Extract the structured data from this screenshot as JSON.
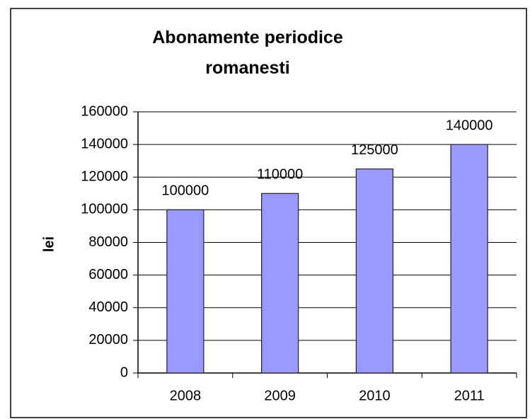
{
  "chart_data": {
    "type": "bar",
    "title": "Abonamente periodice romanesti",
    "y_label": "lei",
    "categories": [
      "2008",
      "2009",
      "2010",
      "2011"
    ],
    "values": [
      100000,
      110000,
      125000,
      140000
    ],
    "color": "#9999ff",
    "ylim": [
      0,
      160000
    ],
    "yticks": [
      0,
      20000,
      40000,
      60000,
      80000,
      100000,
      120000,
      140000,
      160000
    ],
    "grid": true
  }
}
